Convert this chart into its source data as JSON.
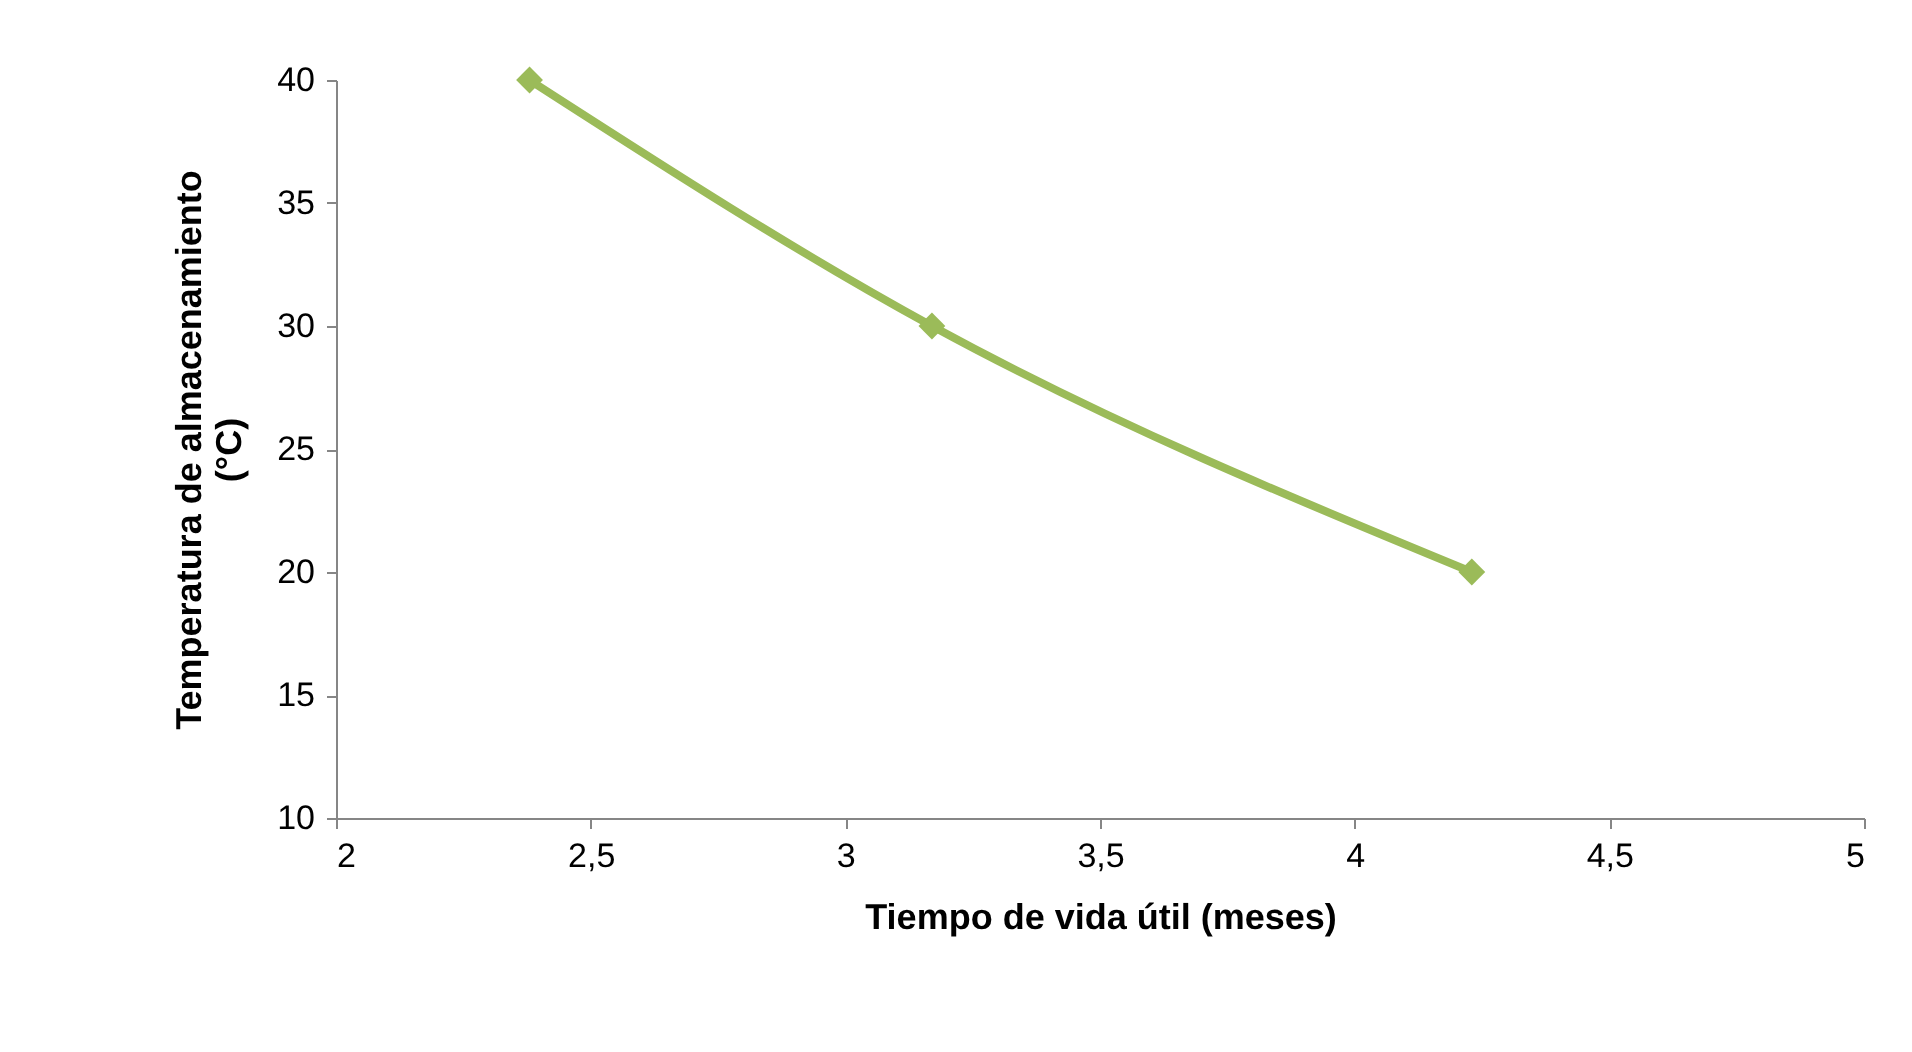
{
  "chart_data": {
    "type": "line",
    "xlabel": "Tiempo de vida útil (meses)",
    "ylabel": "Temperatura de almacenamiento\n(°C)",
    "x": [
      2.38,
      3.17,
      4.23
    ],
    "series": [
      {
        "color": "#9bbb59",
        "values": [
          40,
          30,
          20
        ]
      }
    ],
    "xlim": [
      2,
      5
    ],
    "xticks": [
      2,
      {
        "value": 2.5,
        "label": "2,5"
      },
      3,
      {
        "value": 3.5,
        "label": "3,5"
      },
      4,
      {
        "value": 4.5,
        "label": "4,5"
      },
      5
    ],
    "ylim": [
      10,
      40
    ],
    "yticks": [
      10,
      15,
      20,
      25,
      30,
      35,
      40
    ],
    "grid": false,
    "marker": "diamond",
    "line_style": "solid"
  }
}
